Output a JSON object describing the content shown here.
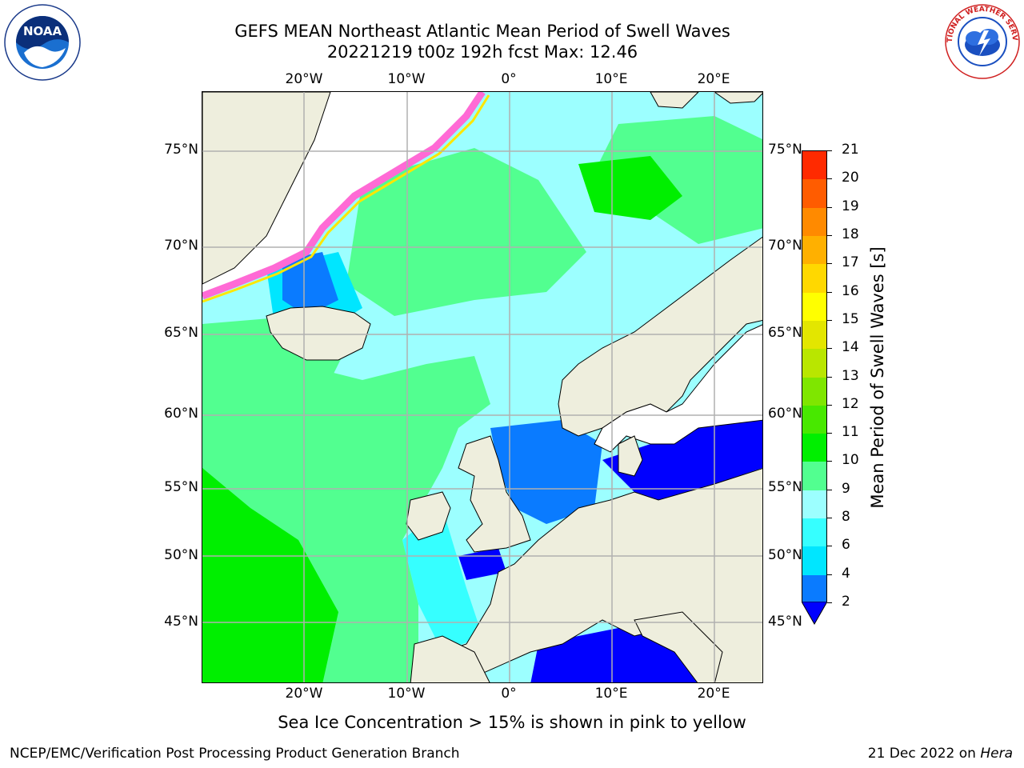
{
  "title_line1": "GEFS MEAN Northeast Atlantic Mean Period of Swell Waves",
  "title_line2": "20221219 t00z 192h fcst   Max: 12.46",
  "note": "Sea Ice Concentration > 15% is shown in pink to yellow",
  "footer_left": "NCEP/EMC/Verification Post Processing Product Generation Branch",
  "footer_right_date": "21 Dec 2022 on ",
  "footer_right_host": "Hera",
  "colorbar_label": "Mean Period of Swell Waves [s]",
  "colorbar_ticks": [
    "2",
    "4",
    "6",
    "8",
    "9",
    "10",
    "11",
    "12",
    "13",
    "14",
    "15",
    "16",
    "17",
    "18",
    "19",
    "20",
    "21"
  ],
  "colorbar_colors": [
    "#0000ff",
    "#0a7bff",
    "#00e6ff",
    "#36ffff",
    "#9cffff",
    "#52ff90",
    "#00ef00",
    "#48e800",
    "#7fe600",
    "#b9e600",
    "#e3e600",
    "#ffff00",
    "#ffd800",
    "#ffb000",
    "#ff8a00",
    "#ff5c00",
    "#ff2a00",
    "#ff0000"
  ],
  "lon_labels": [
    "20°W",
    "10°W",
    "0°",
    "10°E",
    "20°E"
  ],
  "lat_labels": [
    "75°N",
    "70°N",
    "65°N",
    "60°N",
    "55°N",
    "50°N",
    "45°N"
  ],
  "logos": {
    "noaa_text": "NOAA",
    "nws_text": "NATIONAL WEATHER SERVICE"
  },
  "colors": {
    "land": "#eeeedd",
    "ocean_mid": "#9cffff",
    "ocean_green": "#52ff90",
    "ocean_low": "#0000ff",
    "grid": "#b0b0b0"
  }
}
